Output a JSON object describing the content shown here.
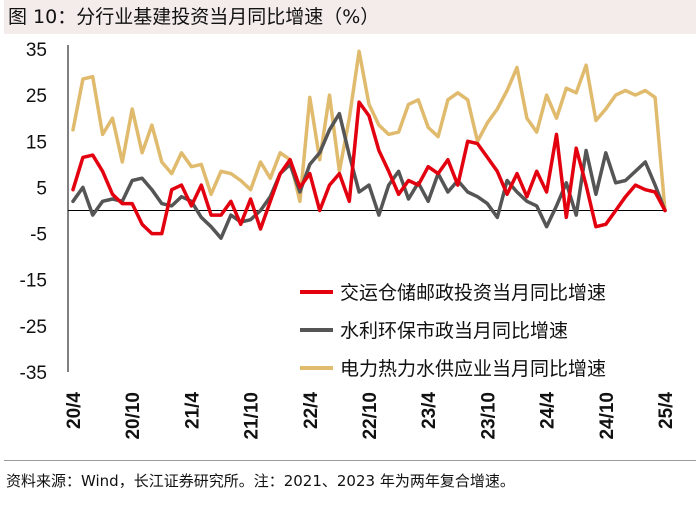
{
  "figure": {
    "label": "图",
    "number": "10：",
    "caption": "分行业基建投资当月同比增速（%）",
    "source": "资料来源：Wind，长江证券研究所。注：2021、2023 年为两年复合增速。"
  },
  "chart_data": {
    "type": "line",
    "title": "分行业基建投资当月同比增速（%）",
    "xlabel": "",
    "ylabel": "",
    "ylim": [
      -35,
      35
    ],
    "yticks": [
      35,
      25,
      15,
      5,
      -5,
      -15,
      -25,
      -35
    ],
    "ytick_labels": [
      "35",
      "25",
      "15",
      "5",
      "-5",
      "-15",
      "-25",
      "-35"
    ],
    "x": [
      "20/4",
      "20/5",
      "20/6",
      "20/7",
      "20/8",
      "20/9",
      "20/10",
      "20/11",
      "20/12",
      "21/1",
      "21/2",
      "21/3",
      "21/4",
      "21/5",
      "21/6",
      "21/7",
      "21/8",
      "21/9",
      "21/10",
      "21/11",
      "21/12",
      "22/1",
      "22/2",
      "22/3",
      "22/4",
      "22/5",
      "22/6",
      "22/7",
      "22/8",
      "22/9",
      "22/10",
      "22/11",
      "22/12",
      "23/1",
      "23/2",
      "23/3",
      "23/4",
      "23/5",
      "23/6",
      "23/7",
      "23/8",
      "23/9",
      "23/10",
      "23/11",
      "23/12",
      "24/1",
      "24/2",
      "24/3",
      "24/4",
      "24/5",
      "24/6",
      "24/7",
      "24/8",
      "24/9",
      "24/10",
      "24/11",
      "24/12",
      "25/1",
      "25/2",
      "25/3",
      "25/4"
    ],
    "tick_labels": [
      "20/4",
      "20/10",
      "21/4",
      "21/10",
      "22/4",
      "22/10",
      "23/4",
      "23/10",
      "24/4",
      "24/10",
      "25/4"
    ],
    "series": [
      {
        "name": "交运仓储邮政投资当月同比增速",
        "color": "#e3000f",
        "values": [
          4.5,
          11.5,
          12.0,
          8.5,
          3.5,
          1.5,
          1.5,
          -3.0,
          -5.0,
          -5.0,
          4.5,
          5.5,
          1.0,
          5.5,
          -1.0,
          -1.0,
          2.0,
          -3.0,
          2.5,
          -4.0,
          2.0,
          8.0,
          11.0,
          5.0,
          8.0,
          0.0,
          5.5,
          8.0,
          2.0,
          23.5,
          20.5,
          13.0,
          8.5,
          3.5,
          6.5,
          5.5,
          9.5,
          8.0,
          11.0,
          5.5,
          15.0,
          14.5,
          11.5,
          8.5,
          3.5,
          8.0,
          3.0,
          8.5,
          4.0,
          16.5,
          -1.5,
          13.5,
          5.5,
          -3.5,
          -3.0,
          0.0,
          3.0,
          5.5,
          4.5,
          4.0,
          0
        ]
      },
      {
        "name": "水利环保市政当月同比增速",
        "color": "#555555",
        "values": [
          2.0,
          5.0,
          -1.0,
          2.0,
          2.5,
          2.0,
          6.5,
          7.0,
          4.5,
          1.5,
          1.0,
          3.0,
          2.0,
          -1.5,
          -3.5,
          -6.0,
          -1.0,
          -2.5,
          -2.0,
          0.0,
          3.0,
          8.0,
          10.0,
          4.0,
          10.0,
          12.5,
          17.5,
          21.0,
          12.0,
          4.0,
          5.5,
          -1.0,
          5.5,
          8.5,
          2.5,
          6.0,
          2.0,
          8.0,
          4.0,
          6.5,
          4.0,
          3.0,
          1.5,
          -1.5,
          6.5,
          4.0,
          2.0,
          1.0,
          -3.5,
          1.0,
          6.0,
          -1.0,
          13.0,
          3.5,
          12.5,
          6.0,
          6.5,
          8.5,
          10.5,
          5.5,
          0
        ]
      },
      {
        "name": "电力热力水供应业当月同比增速",
        "color": "#e0bb6e",
        "values": [
          17.5,
          28.5,
          29.0,
          16.5,
          20.0,
          10.5,
          22.0,
          12.5,
          18.5,
          10.5,
          8.0,
          12.5,
          9.5,
          10.0,
          3.5,
          8.5,
          8.0,
          6.5,
          4.5,
          10.5,
          7.0,
          12.5,
          11.0,
          2.0,
          24.5,
          11.0,
          25.0,
          8.5,
          20.0,
          34.5,
          23.0,
          18.5,
          16.5,
          17.0,
          23.0,
          24.0,
          18.0,
          16.0,
          24.0,
          25.5,
          24.0,
          15.0,
          19.0,
          22.0,
          26.0,
          31.0,
          20.0,
          17.0,
          25.0,
          20.0,
          26.5,
          25.5,
          31.5,
          19.5,
          22.0,
          25.0,
          26.0,
          25.0,
          26.0,
          24.5,
          0
        ]
      }
    ],
    "legend": "center-right, inside plot"
  }
}
